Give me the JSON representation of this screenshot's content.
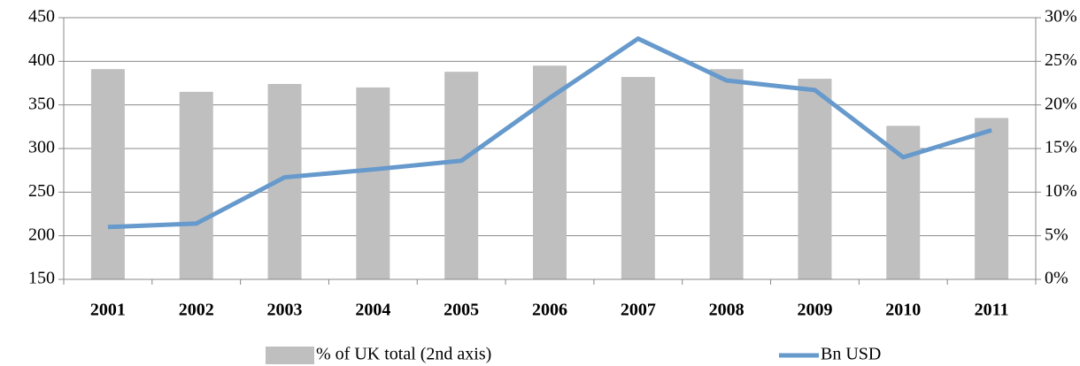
{
  "chart_data": {
    "type": "bar_line",
    "categories": [
      "2001",
      "2002",
      "2003",
      "2004",
      "2005",
      "2006",
      "2007",
      "2008",
      "2009",
      "2010",
      "2011"
    ],
    "series": [
      {
        "name": "% of UK total (2nd axis)",
        "type": "bar",
        "axis": "y2",
        "color": "#bfbfbf",
        "values": [
          24.1,
          21.5,
          22.4,
          22.0,
          23.8,
          24.5,
          23.2,
          24.1,
          23.0,
          17.6,
          18.5
        ]
      },
      {
        "name": "Bn USD",
        "type": "line",
        "axis": "y",
        "color": "#6699cc",
        "values": [
          210,
          214,
          267,
          276,
          286,
          358,
          426,
          378,
          367,
          290,
          321
        ]
      }
    ],
    "ylim": [
      150,
      450
    ],
    "yticks": [
      150,
      200,
      250,
      300,
      350,
      400,
      450
    ],
    "y2lim": [
      0,
      30
    ],
    "y2ticks": [
      {
        "value": 0,
        "label": "0%"
      },
      {
        "value": 5,
        "label": "5%"
      },
      {
        "value": 10,
        "label": "10%"
      },
      {
        "value": 15,
        "label": "15%"
      },
      {
        "value": 20,
        "label": "20%"
      },
      {
        "value": 25,
        "label": "25%"
      },
      {
        "value": 30,
        "label": "30%"
      }
    ],
    "grid": true,
    "legend": "bottom"
  }
}
